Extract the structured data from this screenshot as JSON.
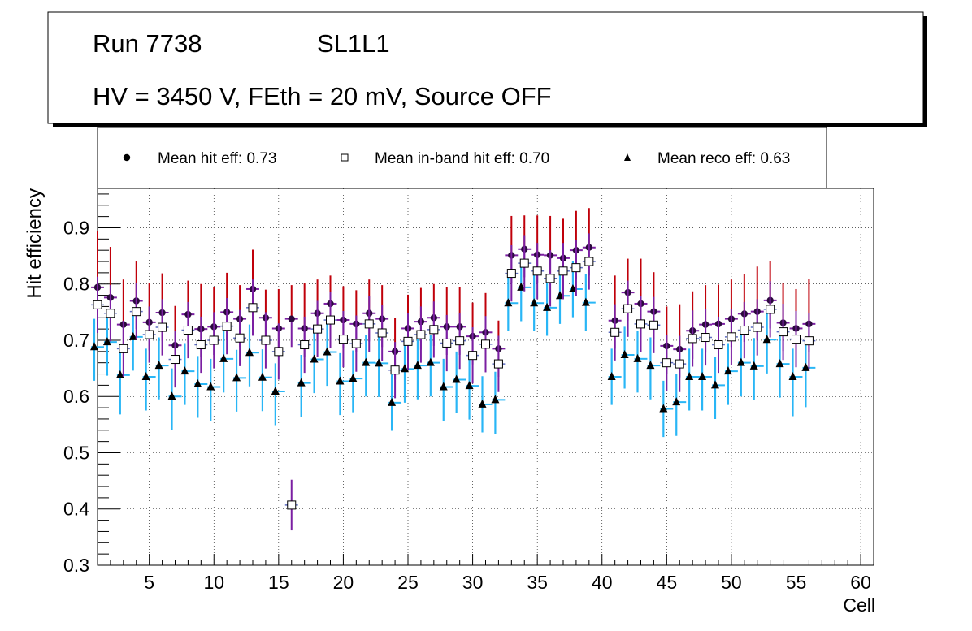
{
  "header": {
    "run": "Run 7738",
    "layer": "SL1L1",
    "settings": "HV = 3450 V, FEth = 20 mV, Source OFF"
  },
  "legend": {
    "hit": "Mean hit  eff: 0.73",
    "inband": "Mean in-band hit eff: 0.70",
    "reco": "Mean reco eff: 0.63"
  },
  "chart_data": {
    "type": "scatter",
    "title": "",
    "xlabel": "Cell",
    "ylabel": "Hit efficiency",
    "xlim": [
      1,
      61
    ],
    "ylim": [
      0.3,
      0.97
    ],
    "grid": true,
    "xticks": [
      5,
      10,
      15,
      20,
      25,
      30,
      35,
      40,
      45,
      50,
      55,
      60
    ],
    "yticks": [
      0.3,
      0.4,
      0.5,
      0.6,
      0.7,
      0.8,
      0.9
    ],
    "x": [
      1,
      2,
      3,
      4,
      5,
      6,
      7,
      8,
      9,
      10,
      11,
      12,
      13,
      14,
      15,
      16,
      17,
      18,
      19,
      20,
      21,
      22,
      23,
      24,
      25,
      26,
      27,
      28,
      29,
      30,
      31,
      32,
      33,
      34,
      35,
      36,
      37,
      38,
      39,
      40,
      41,
      42,
      43,
      44,
      45,
      46,
      47,
      48,
      49,
      50,
      51,
      52,
      53,
      54,
      55,
      56
    ],
    "series": [
      {
        "name": "hit",
        "marker": "filled-circle",
        "color": "#7b1fa2",
        "values": [
          0.794,
          0.776,
          0.728,
          0.77,
          0.732,
          0.749,
          0.691,
          0.746,
          0.72,
          0.724,
          0.75,
          0.738,
          0.791,
          0.74,
          0.721,
          0.738,
          0.721,
          0.748,
          0.765,
          0.736,
          0.729,
          0.748,
          0.738,
          0.68,
          0.721,
          0.733,
          0.74,
          0.724,
          0.724,
          0.707,
          0.714,
          0.685,
          0.851,
          0.862,
          0.852,
          0.851,
          0.846,
          0.86,
          0.865,
          null,
          0.735,
          0.785,
          0.765,
          0.751,
          0.69,
          0.684,
          0.717,
          0.728,
          0.729,
          0.738,
          0.747,
          0.751,
          0.771,
          0.731,
          0.721,
          0.729
        ],
        "err_low": [
          0.05,
          0.05,
          0.05,
          0.05,
          0.05,
          0.05,
          0.05,
          0.05,
          0.05,
          0.05,
          0.05,
          0.05,
          0.05,
          0.05,
          0.05,
          0.05,
          0.05,
          0.05,
          0.05,
          0.05,
          0.05,
          0.05,
          0.05,
          0.05,
          0.05,
          0.05,
          0.05,
          0.05,
          0.05,
          0.05,
          0.05,
          0.05,
          0.05,
          0.05,
          0.05,
          0.05,
          0.05,
          0.05,
          0.05,
          null,
          0.05,
          0.05,
          0.05,
          0.05,
          0.05,
          0.05,
          0.05,
          0.05,
          0.05,
          0.05,
          0.05,
          0.05,
          0.05,
          0.05,
          0.05,
          0.05
        ],
        "err_high": [
          0.1,
          0.09,
          0.08,
          0.07,
          0.07,
          0.07,
          0.07,
          0.06,
          0.08,
          0.07,
          0.07,
          0.06,
          0.07,
          0.05,
          0.07,
          0.06,
          0.08,
          0.06,
          0.05,
          0.06,
          0.06,
          0.06,
          0.06,
          0.06,
          0.06,
          0.06,
          0.06,
          0.07,
          0.07,
          0.06,
          0.07,
          0.05,
          0.07,
          0.06,
          0.07,
          0.07,
          0.07,
          0.07,
          0.07,
          null,
          0.08,
          0.06,
          0.08,
          0.07,
          0.07,
          0.08,
          0.07,
          0.07,
          0.07,
          0.07,
          0.07,
          0.08,
          0.07,
          0.07,
          0.07,
          0.08
        ]
      },
      {
        "name": "inband",
        "marker": "open-square",
        "color": "#d32f2f",
        "values": [
          0.763,
          0.748,
          0.685,
          0.751,
          0.71,
          0.723,
          0.666,
          0.718,
          0.692,
          0.7,
          0.725,
          0.704,
          0.758,
          0.7,
          0.68,
          0.407,
          0.692,
          0.72,
          0.736,
          0.702,
          0.694,
          0.729,
          0.713,
          0.647,
          0.698,
          0.71,
          0.719,
          0.695,
          0.699,
          0.673,
          0.693,
          0.658,
          0.819,
          0.837,
          0.823,
          0.81,
          0.823,
          0.829,
          0.84,
          null,
          0.714,
          0.756,
          0.729,
          0.727,
          0.66,
          0.658,
          0.703,
          0.705,
          0.692,
          0.706,
          0.718,
          0.723,
          0.755,
          0.715,
          0.702,
          0.699
        ],
        "err_low": [
          0.05,
          0.05,
          0.05,
          0.05,
          0.05,
          0.05,
          0.05,
          0.05,
          0.05,
          0.05,
          0.05,
          0.05,
          0.05,
          0.05,
          0.05,
          0.045,
          0.05,
          0.05,
          0.05,
          0.05,
          0.05,
          0.05,
          0.05,
          0.05,
          0.05,
          0.05,
          0.05,
          0.05,
          0.05,
          0.05,
          0.05,
          0.05,
          0.05,
          0.05,
          0.05,
          0.05,
          0.05,
          0.05,
          0.05,
          null,
          0.05,
          0.05,
          0.05,
          0.05,
          0.05,
          0.05,
          0.05,
          0.05,
          0.05,
          0.05,
          0.05,
          0.05,
          0.05,
          0.05,
          0.05,
          0.05
        ],
        "err_high": [
          0.05,
          0.05,
          0.05,
          0.05,
          0.05,
          0.05,
          0.05,
          0.05,
          0.05,
          0.05,
          0.05,
          0.05,
          0.05,
          0.05,
          0.05,
          0.045,
          0.05,
          0.05,
          0.05,
          0.05,
          0.05,
          0.05,
          0.05,
          0.05,
          0.05,
          0.05,
          0.05,
          0.05,
          0.05,
          0.05,
          0.05,
          0.05,
          0.05,
          0.05,
          0.05,
          0.05,
          0.05,
          0.05,
          0.05,
          null,
          0.05,
          0.05,
          0.05,
          0.05,
          0.05,
          0.05,
          0.05,
          0.05,
          0.05,
          0.05,
          0.05,
          0.05,
          0.05,
          0.05,
          0.05,
          0.05
        ]
      },
      {
        "name": "reco",
        "marker": "filled-triangle",
        "color": "#29b6f6",
        "values": [
          0.688,
          0.697,
          0.638,
          0.706,
          0.635,
          0.655,
          0.6,
          0.645,
          0.622,
          0.617,
          0.667,
          0.633,
          0.678,
          0.634,
          0.609,
          null,
          0.624,
          0.666,
          0.679,
          0.627,
          0.632,
          0.66,
          0.659,
          0.589,
          0.649,
          0.655,
          0.66,
          0.617,
          0.63,
          0.619,
          0.586,
          0.594,
          0.766,
          0.794,
          0.766,
          0.758,
          0.779,
          0.791,
          0.767,
          null,
          0.635,
          0.674,
          0.667,
          0.655,
          0.578,
          0.59,
          0.635,
          0.635,
          0.62,
          0.645,
          0.66,
          0.654,
          0.701,
          0.658,
          0.635,
          0.651
        ],
        "err_low": [
          0.06,
          0.06,
          0.07,
          0.06,
          0.06,
          0.06,
          0.06,
          0.06,
          0.06,
          0.06,
          0.06,
          0.06,
          0.06,
          0.06,
          0.06,
          null,
          0.06,
          0.06,
          0.06,
          0.06,
          0.06,
          0.06,
          0.06,
          0.05,
          0.06,
          0.06,
          0.06,
          0.06,
          0.06,
          0.06,
          0.05,
          0.06,
          0.05,
          0.06,
          0.05,
          0.05,
          0.05,
          0.05,
          0.05,
          null,
          0.05,
          0.06,
          0.06,
          0.06,
          0.05,
          0.06,
          0.06,
          0.06,
          0.06,
          0.06,
          0.06,
          0.06,
          0.06,
          0.06,
          0.07,
          0.07
        ],
        "err_high": [
          0.05,
          0.05,
          0.05,
          0.05,
          0.05,
          0.05,
          0.05,
          0.05,
          0.05,
          0.05,
          0.05,
          0.05,
          0.05,
          0.05,
          0.05,
          null,
          0.05,
          0.05,
          0.05,
          0.05,
          0.05,
          0.05,
          0.05,
          0.05,
          0.05,
          0.05,
          0.05,
          0.05,
          0.05,
          0.05,
          0.05,
          0.05,
          0.05,
          0.05,
          0.05,
          0.05,
          0.05,
          0.05,
          0.05,
          null,
          0.05,
          0.05,
          0.05,
          0.05,
          0.05,
          0.05,
          0.05,
          0.05,
          0.05,
          0.05,
          0.05,
          0.05,
          0.05,
          0.05,
          0.05,
          0.05
        ]
      }
    ]
  }
}
